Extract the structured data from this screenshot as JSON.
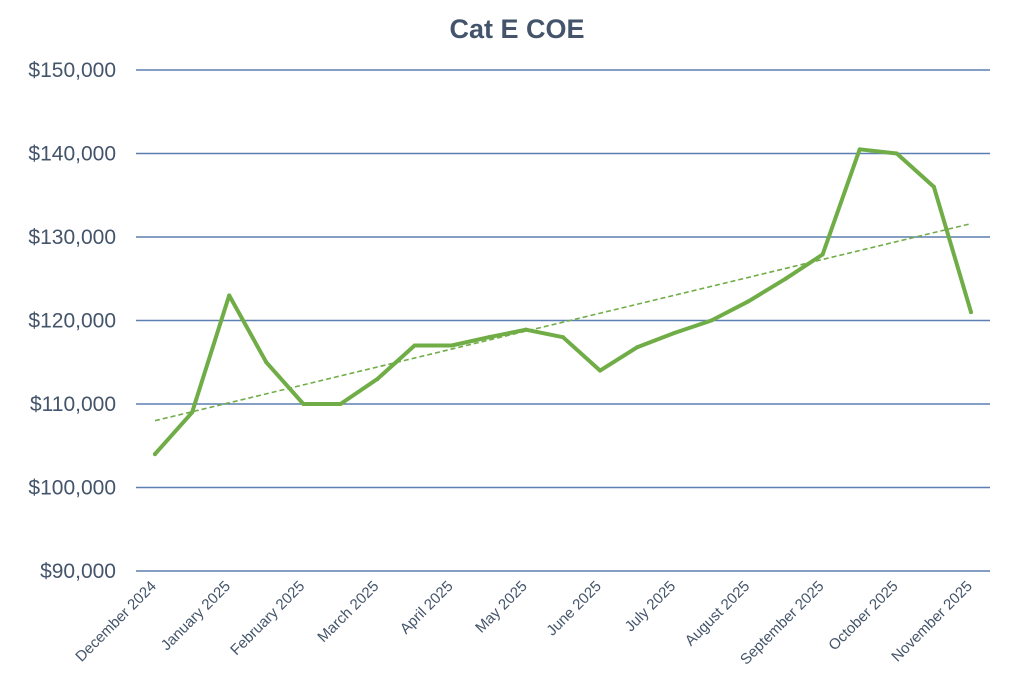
{
  "chart_data": {
    "type": "line",
    "title": "Cat E COE",
    "xlabel": "",
    "ylabel": "",
    "ylim": [
      90000,
      150000
    ],
    "yticks": [
      90000,
      100000,
      110000,
      120000,
      130000,
      140000,
      150000
    ],
    "ytick_labels": [
      "$90,000",
      "$100,000",
      "$110,000",
      "$120,000",
      "$130,000",
      "$140,000",
      "$150,000"
    ],
    "categories": [
      "December 2024",
      "January 2025",
      "February 2025",
      "March 2025",
      "April 2025",
      "May 2025",
      "June 2025",
      "July 2025",
      "August 2025",
      "September 2025",
      "October 2025",
      "November 2025"
    ],
    "grid": true,
    "legend": "none",
    "series": [
      {
        "x": [
          0,
          0.5,
          1,
          1.5,
          2,
          2.5,
          3,
          3.5,
          4,
          4.5,
          5,
          5.5,
          6,
          6.5,
          7,
          7.5,
          8,
          8.5,
          9,
          9.5,
          10,
          10.5,
          11
        ],
        "values": [
          104000,
          109000,
          123000,
          115000,
          110000,
          110000,
          113000,
          117000,
          117000,
          118000,
          118900,
          118000,
          114000,
          116800,
          118500,
          120000,
          122300,
          125000,
          127900,
          140500,
          140000,
          136000,
          121000
        ],
        "color": "#70ad47"
      }
    ],
    "trendline": {
      "type": "linear",
      "start": 108000,
      "end": 131600,
      "color": "#70ad47"
    }
  }
}
